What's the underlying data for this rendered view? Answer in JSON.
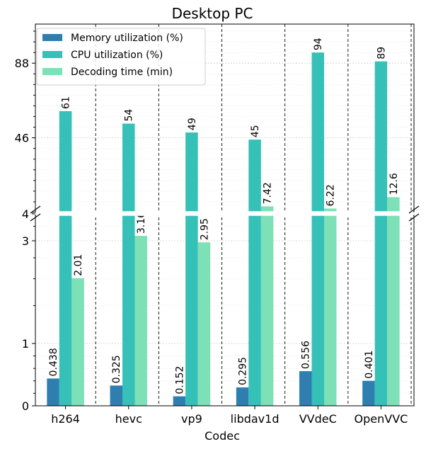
{
  "chart_data": {
    "type": "bar",
    "title": "Desktop PC",
    "xlabel": "Codec",
    "ylabel": "",
    "categories": [
      "h264",
      "hevc",
      "vp9",
      "libdav1d",
      "VVdeC",
      "OpenVVC"
    ],
    "series": [
      {
        "name": "Memory utilization (%)",
        "color": "#2e7fb0",
        "values": [
          0.438,
          0.325,
          0.152,
          0.295,
          0.556,
          0.401
        ],
        "labels": [
          "0.438",
          "0.325",
          "0.152",
          "0.295",
          "0.556",
          "0.401"
        ]
      },
      {
        "name": "CPU utilization (%)",
        "color": "#35c0b8",
        "values": [
          61,
          54,
          49,
          45,
          94,
          89
        ],
        "labels": [
          "61",
          "54",
          "49",
          "45",
          "94",
          "89"
        ]
      },
      {
        "name": "Decoding time (min)",
        "color": "#7de0b6",
        "values": [
          2.01,
          3.16,
          2.95,
          7.42,
          6.22,
          12.6
        ],
        "labels": [
          "2.01",
          "3.16",
          "2.95",
          "7.42",
          "6.22",
          "12.6"
        ]
      }
    ],
    "y_break": {
      "lower_range": [
        0,
        4
      ],
      "upper_range": [
        4,
        110
      ],
      "lower_scale": "symlog",
      "upper_scale": "linear"
    },
    "y_ticks_lower": [
      0,
      1,
      3,
      4
    ],
    "y_ticks_upper": [
      4,
      46,
      88
    ],
    "grid": true,
    "legend_position": "top-left"
  }
}
